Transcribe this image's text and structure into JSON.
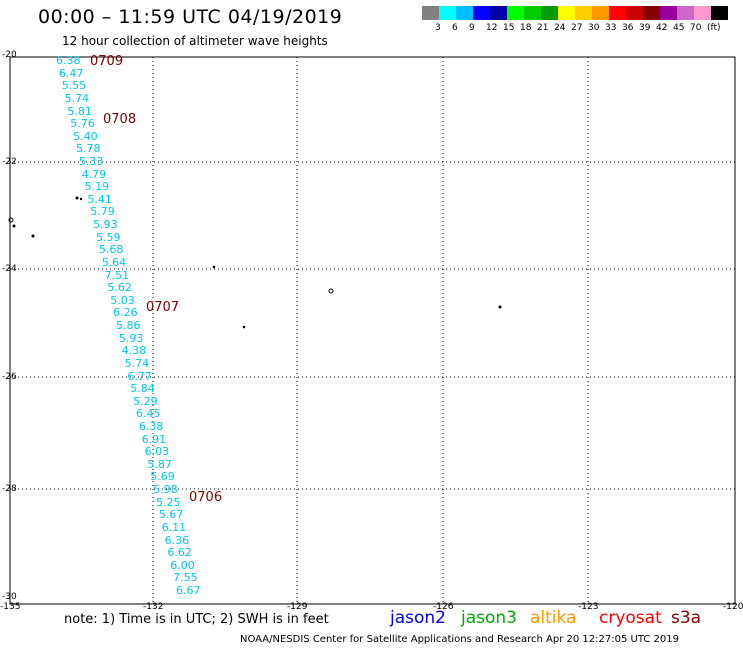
{
  "header": {
    "title": "00:00 – 11:59 UTC 04/19/2019",
    "subtitle": "12 hour collection of altimeter wave heights"
  },
  "legend": {
    "colors": [
      "#808080",
      "#00ffff",
      "#00bfff",
      "#0000ff",
      "#0000aa",
      "#00ff00",
      "#00cc00",
      "#009900",
      "#ffff00",
      "#ffcc00",
      "#ff9900",
      "#ff0000",
      "#cc0000",
      "#880000",
      "#990099",
      "#cc66cc",
      "#ff99cc",
      "#000000"
    ],
    "labels": [
      "3",
      "6",
      "9",
      "12",
      "15",
      "18",
      "21",
      "24",
      "27",
      "30",
      "33",
      "36",
      "39",
      "42",
      "45",
      "70"
    ],
    "unit": "(ft)"
  },
  "axes": {
    "lat_ticks": [
      "-20",
      "-22",
      "-24",
      "-26",
      "-28",
      "-30"
    ],
    "lon_ticks": [
      "-135",
      "-132",
      "-129",
      "-126",
      "-123",
      "-120"
    ]
  },
  "swh_values": [
    "6.38",
    "6.47",
    "5.55",
    "5.74",
    "5.81",
    "5.76",
    "5.40",
    "5.78",
    "5.33",
    "4.79",
    "5.19",
    "5.41",
    "5.79",
    "5.93",
    "5.59",
    "5.68",
    "5.64",
    "7.51",
    "5.62",
    "5.03",
    "6.26",
    "5.86",
    "5.93",
    "4.38",
    "5.74",
    "6.77",
    "5.84",
    "5.29",
    "6.45",
    "6.38",
    "6.91",
    "6.03",
    "5.87",
    "5.69",
    "5.98",
    "5.25",
    "5.67",
    "6.11",
    "6.36",
    "6.62",
    "6.00",
    "7.55",
    "6.67"
  ],
  "time_labels": [
    "0709",
    "0708",
    "0707",
    "0706"
  ],
  "footer": {
    "note": "note: 1) Time is in UTC; 2) SWH is in feet",
    "satellites": [
      {
        "name": "jason2",
        "color": "#0000ff"
      },
      {
        "name": "jason3",
        "color": "#00aa00"
      },
      {
        "name": "altika",
        "color": "#ff9900"
      },
      {
        "name": "cryosat",
        "color": "#ff0000"
      },
      {
        "name": "s3a",
        "color": "#880000"
      }
    ],
    "credit": "NOAA/NESDIS Center for Satellite Applications and Research     Apr 20 12:27:05 UTC 2019"
  }
}
